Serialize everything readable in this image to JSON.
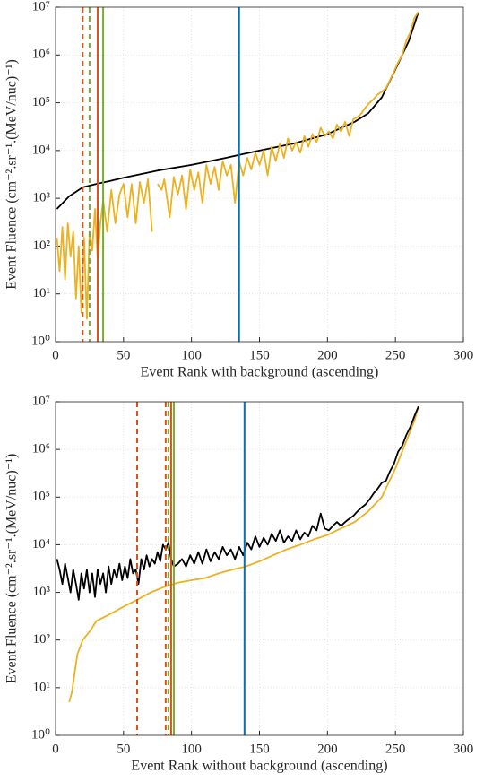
{
  "chart_data": [
    {
      "type": "line",
      "xlabel": "Event Rank with background (ascending)",
      "ylabel": "Event Fluence (cm⁻².sr⁻¹.(MeV/nuc)⁻¹)",
      "xlim": [
        0,
        300
      ],
      "ylim": [
        1,
        10000000
      ],
      "log_y": true,
      "grid": true,
      "xticks": [
        0,
        50,
        100,
        150,
        200,
        250,
        300
      ],
      "yticks": [
        {
          "value": 1,
          "label": "10⁰"
        },
        {
          "value": 10,
          "label": "10¹"
        },
        {
          "value": 100,
          "label": "10²"
        },
        {
          "value": 1000,
          "label": "10³"
        },
        {
          "value": 10000,
          "label": "10⁴"
        },
        {
          "value": 100000,
          "label": "10⁵"
        },
        {
          "value": 1000000,
          "label": "10⁶"
        },
        {
          "value": 10000000,
          "label": "10⁷"
        }
      ],
      "series": [
        {
          "color": "#000000",
          "x": [
            1,
            10,
            20,
            30,
            40,
            50,
            75,
            100,
            125,
            150,
            175,
            200,
            220,
            230,
            240,
            250,
            260,
            267
          ],
          "values": [
            600,
            1100,
            1700,
            2000,
            2300,
            2700,
            3800,
            5000,
            7000,
            10000,
            14000,
            22000,
            40000,
            60000,
            130000,
            500000,
            2000000,
            8000000
          ]
        },
        {
          "color": "#edb120",
          "x": [
            1,
            3,
            5,
            7,
            9,
            11,
            13,
            15,
            17,
            19,
            21,
            23,
            25,
            27,
            29,
            31,
            33,
            35,
            38,
            41,
            44,
            47,
            50,
            53,
            56,
            59,
            62,
            65,
            68,
            71,
            72,
            75,
            78,
            80,
            84,
            87,
            90,
            93,
            96,
            99,
            102,
            105,
            108,
            111,
            114,
            117,
            120,
            123,
            126,
            129,
            132,
            135,
            138,
            141,
            144,
            147,
            150,
            153,
            156,
            159,
            162,
            165,
            168,
            171,
            174,
            177,
            180,
            183,
            186,
            189,
            192,
            195,
            198,
            201,
            204,
            207,
            210,
            213,
            216,
            219,
            222,
            225,
            228,
            231,
            234,
            237,
            240,
            243,
            246,
            249,
            252,
            255,
            258,
            261,
            264,
            267
          ],
          "values": [
            150,
            30,
            250,
            20,
            300,
            60,
            200,
            8,
            100,
            4,
            150,
            3,
            200,
            80,
            600,
            50,
            300,
            900,
            200,
            1500,
            300,
            1200,
            2000,
            400,
            2000,
            300,
            2200,
            800,
            2500,
            200,
            null,
            2000,
            1500,
            2500,
            400,
            2800,
            1200,
            3000,
            600,
            4000,
            1500,
            3500,
            800,
            5000,
            2000,
            4500,
            1500,
            6000,
            3000,
            5000,
            800,
            6000,
            3000,
            7000,
            4000,
            9000,
            5000,
            10000,
            3000,
            12000,
            6000,
            14000,
            7000,
            18000,
            10000,
            15000,
            9000,
            20000,
            12000,
            22000,
            15000,
            30000,
            20000,
            25000,
            18000,
            35000,
            25000,
            40000,
            20000,
            45000,
            50000,
            60000,
            80000,
            100000,
            120000,
            150000,
            170000,
            200000,
            300000,
            450000,
            700000,
            1000000,
            2000000,
            3000000,
            6000000,
            8000000
          ]
        }
      ],
      "vlines": [
        {
          "x": 20,
          "color": "#d95319",
          "dashed": true
        },
        {
          "x": 25,
          "color": "#77ac30",
          "dashed": true
        },
        {
          "x": 31,
          "color": "#d95319",
          "dashed": false
        },
        {
          "x": 35,
          "color": "#77ac30",
          "dashed": false
        },
        {
          "x": 135,
          "color": "#0072bd",
          "dashed": false
        }
      ]
    },
    {
      "type": "line",
      "xlabel": "Event Rank without background (ascending)",
      "ylabel": "Event Fluence (cm⁻².sr⁻¹.(MeV/nuc)⁻¹)",
      "xlim": [
        0,
        300
      ],
      "ylim": [
        1,
        10000000
      ],
      "log_y": true,
      "grid": true,
      "xticks": [
        0,
        50,
        100,
        150,
        200,
        250,
        300
      ],
      "yticks": [
        {
          "value": 1,
          "label": "10⁰"
        },
        {
          "value": 10,
          "label": "10¹"
        },
        {
          "value": 100,
          "label": "10²"
        },
        {
          "value": 1000,
          "label": "10³"
        },
        {
          "value": 10000,
          "label": "10⁴"
        },
        {
          "value": 100000,
          "label": "10⁵"
        },
        {
          "value": 1000000,
          "label": "10⁶"
        },
        {
          "value": 10000000,
          "label": "10⁷"
        }
      ],
      "series": [
        {
          "color": "#edb120",
          "x": [
            10,
            12,
            14,
            16,
            20,
            25,
            30,
            40,
            50,
            60,
            70,
            80,
            90,
            100,
            110,
            120,
            130,
            140,
            150,
            160,
            170,
            180,
            190,
            200,
            210,
            220,
            230,
            240,
            250,
            258,
            264,
            267
          ],
          "values": [
            5,
            8,
            20,
            50,
            100,
            150,
            250,
            350,
            500,
            700,
            1000,
            1300,
            1600,
            1800,
            2000,
            2500,
            3000,
            3500,
            4500,
            6000,
            8000,
            10000,
            13000,
            16000,
            22000,
            30000,
            50000,
            100000,
            400000,
            1500000,
            4000000,
            8000000
          ]
        },
        {
          "color": "#000000",
          "x": [
            1,
            3,
            5,
            7,
            9,
            11,
            13,
            15,
            17,
            19,
            21,
            23,
            25,
            27,
            29,
            31,
            33,
            35,
            37,
            39,
            41,
            43,
            45,
            47,
            49,
            51,
            53,
            55,
            57,
            59,
            61,
            63,
            65,
            67,
            69,
            71,
            73,
            75,
            77,
            79,
            81,
            83,
            85,
            87,
            90,
            93,
            96,
            99,
            102,
            105,
            108,
            111,
            114,
            117,
            120,
            123,
            126,
            129,
            132,
            135,
            138,
            141,
            144,
            147,
            150,
            153,
            156,
            159,
            162,
            165,
            168,
            171,
            174,
            177,
            180,
            183,
            186,
            189,
            192,
            195,
            198,
            201,
            204,
            207,
            210,
            213,
            216,
            219,
            222,
            225,
            228,
            231,
            234,
            237,
            240,
            243,
            246,
            249,
            252,
            255,
            258,
            261,
            264,
            267
          ],
          "values": [
            5000,
            3000,
            1500,
            4000,
            2000,
            1000,
            3000,
            1500,
            700,
            2500,
            1200,
            3000,
            1000,
            2500,
            800,
            3000,
            1500,
            2500,
            1000,
            3500,
            1500,
            3000,
            2000,
            4000,
            1800,
            3500,
            2000,
            5000,
            2500,
            3000,
            1500,
            5000,
            3000,
            6000,
            3500,
            5000,
            4000,
            7000,
            4500,
            10000,
            8000,
            11000,
            5000,
            3500,
            4000,
            5000,
            3500,
            6000,
            4000,
            7000,
            4000,
            8000,
            4500,
            7000,
            5000,
            9000,
            6000,
            8000,
            5000,
            9000,
            6000,
            11000,
            8000,
            15000,
            9000,
            14000,
            10000,
            17000,
            12000,
            20000,
            11000,
            15000,
            12000,
            20000,
            13000,
            18000,
            15000,
            25000,
            20000,
            45000,
            22000,
            20000,
            25000,
            30000,
            25000,
            30000,
            35000,
            40000,
            50000,
            60000,
            70000,
            90000,
            120000,
            150000,
            200000,
            220000,
            350000,
            500000,
            900000,
            1200000,
            2000000,
            3000000,
            5000000,
            8000000
          ]
        }
      ],
      "vlines": [
        {
          "x": 60,
          "color": "#d95319",
          "dashed": true
        },
        {
          "x": 81,
          "color": "#d95319",
          "dashed": true
        },
        {
          "x": 83,
          "color": "#77ac30",
          "dashed": true
        },
        {
          "x": 85,
          "color": "#d95319",
          "dashed": false
        },
        {
          "x": 87,
          "color": "#77ac30",
          "dashed": false
        },
        {
          "x": 139,
          "color": "#0072bd",
          "dashed": false
        }
      ]
    }
  ]
}
